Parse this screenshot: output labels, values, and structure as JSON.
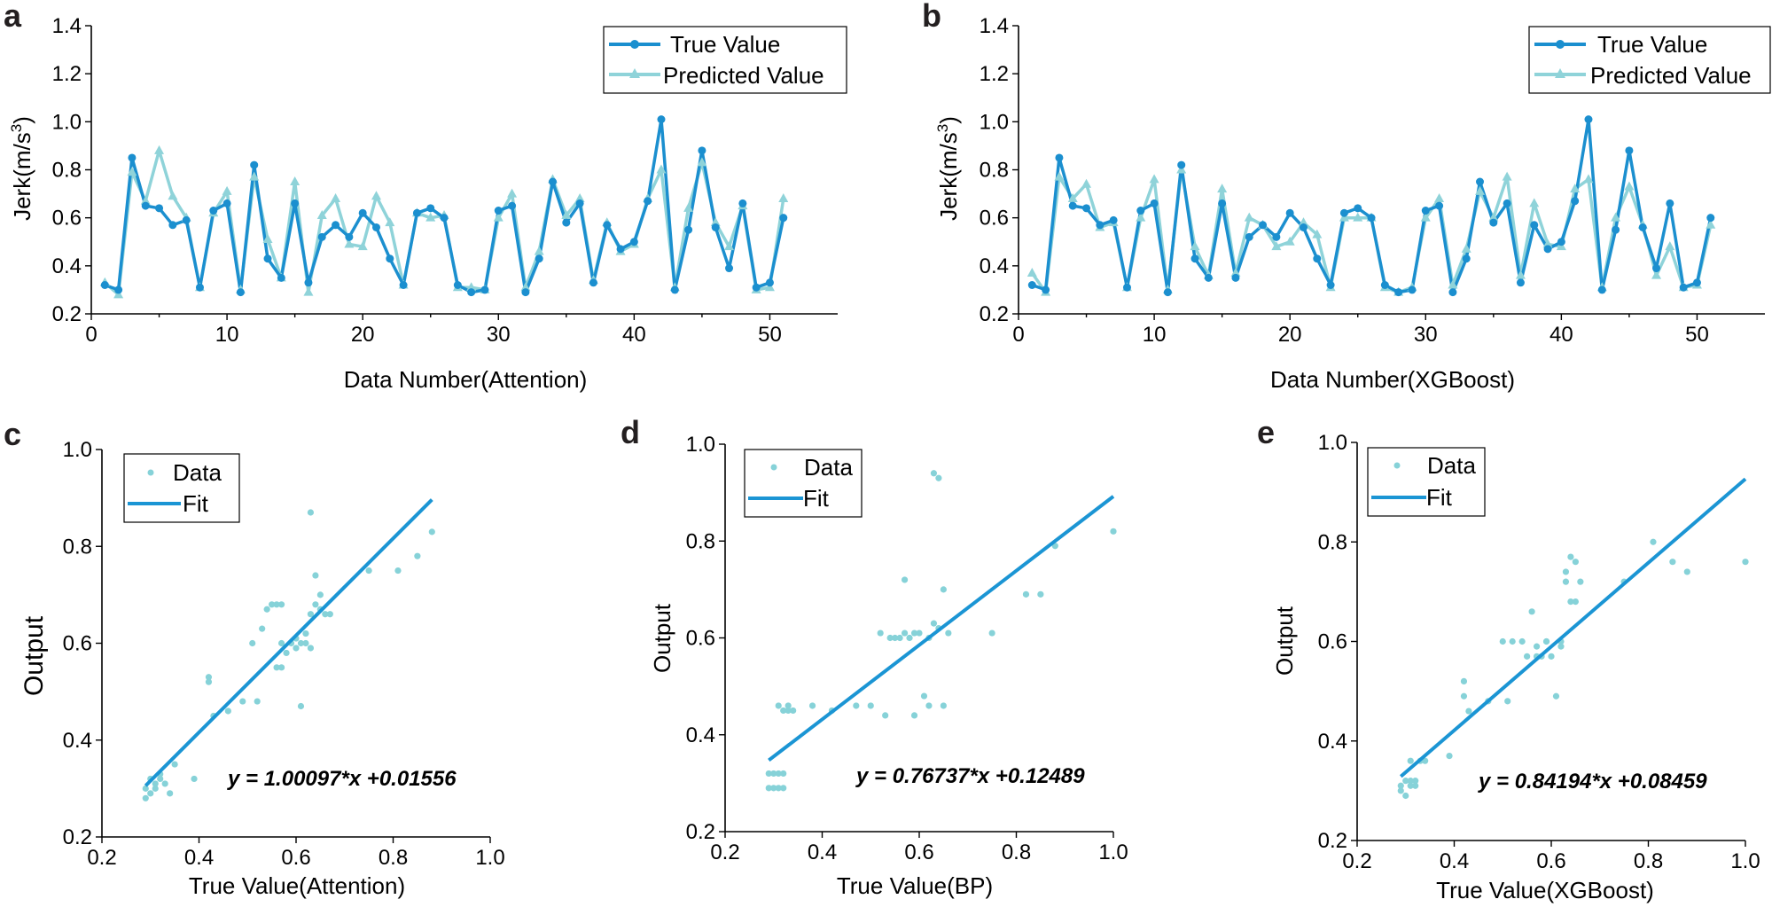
{
  "colors": {
    "true": "#1b8fcf",
    "pred": "#8fd3d9",
    "scatter": "#86d2d8",
    "fit": "#1b95d4"
  },
  "chart_data": [
    {
      "id": "a",
      "type": "line",
      "panel_label": "a",
      "xlabel": "Data Number(Attention)",
      "ylabel": "Jerk(m/s",
      "ylabel_sup": "3",
      "ylabel_end": ")",
      "xlim": [
        0,
        55
      ],
      "ylim": [
        0.2,
        1.4
      ],
      "xticks": [
        0,
        10,
        20,
        30,
        40,
        50
      ],
      "yticks": [
        0.2,
        0.4,
        0.6,
        0.8,
        1.0,
        1.2,
        1.4
      ],
      "xtick_labels": [
        "0",
        "10",
        "20",
        "30",
        "40",
        "50"
      ],
      "ytick_labels": [
        "0.2",
        "0.4",
        "0.6",
        "0.8",
        "1.0",
        "1.2",
        "1.4"
      ],
      "legend": [
        "True Value",
        "Predicted Value"
      ],
      "series": [
        {
          "name": "True Value",
          "marker": "circle",
          "values": [
            0.32,
            0.3,
            0.85,
            0.65,
            0.64,
            0.57,
            0.59,
            0.31,
            0.63,
            0.66,
            0.29,
            0.82,
            0.43,
            0.35,
            0.66,
            0.33,
            0.52,
            0.57,
            0.52,
            0.62,
            0.56,
            0.43,
            0.32,
            0.62,
            0.64,
            0.6,
            0.32,
            0.29,
            0.3,
            0.63,
            0.65,
            0.29,
            0.43,
            0.75,
            0.58,
            0.66,
            0.33,
            0.57,
            0.47,
            0.5,
            0.67,
            1.01,
            0.3,
            0.55,
            0.88,
            0.56,
            0.39,
            0.66,
            0.31,
            0.33,
            0.6
          ]
        },
        {
          "name": "Predicted Value",
          "marker": "triangle",
          "values": [
            0.33,
            0.28,
            0.79,
            0.67,
            0.88,
            0.69,
            0.6,
            0.31,
            0.62,
            0.71,
            0.3,
            0.77,
            0.51,
            0.35,
            0.75,
            0.29,
            0.61,
            0.68,
            0.49,
            0.48,
            0.69,
            0.58,
            0.32,
            0.62,
            0.6,
            0.61,
            0.31,
            0.31,
            0.3,
            0.6,
            0.7,
            0.31,
            0.46,
            0.76,
            0.61,
            0.68,
            0.34,
            0.58,
            0.46,
            0.49,
            0.68,
            0.8,
            0.31,
            0.64,
            0.83,
            0.58,
            0.48,
            0.65,
            0.3,
            0.31,
            0.68
          ]
        }
      ]
    },
    {
      "id": "b",
      "type": "line",
      "panel_label": "b",
      "xlabel": "Data Number(XGBoost)",
      "ylabel": "Jerk(m/s",
      "ylabel_sup": "3",
      "ylabel_end": ")",
      "xlim": [
        0,
        55
      ],
      "ylim": [
        0.2,
        1.4
      ],
      "xticks": [
        0,
        10,
        20,
        30,
        40,
        50
      ],
      "yticks": [
        0.2,
        0.4,
        0.6,
        0.8,
        1.0,
        1.2,
        1.4
      ],
      "xtick_labels": [
        "0",
        "10",
        "20",
        "30",
        "40",
        "50"
      ],
      "ytick_labels": [
        "0.2",
        "0.4",
        "0.6",
        "0.8",
        "1.0",
        "1.2",
        "1.4"
      ],
      "legend": [
        "True Value",
        "Predicted Value"
      ],
      "series": [
        {
          "name": "True Value",
          "marker": "circle",
          "values": [
            0.32,
            0.3,
            0.85,
            0.65,
            0.64,
            0.57,
            0.59,
            0.31,
            0.63,
            0.66,
            0.29,
            0.82,
            0.43,
            0.35,
            0.66,
            0.35,
            0.52,
            0.57,
            0.52,
            0.62,
            0.56,
            0.43,
            0.32,
            0.62,
            0.64,
            0.6,
            0.32,
            0.29,
            0.3,
            0.63,
            0.65,
            0.29,
            0.43,
            0.75,
            0.58,
            0.66,
            0.33,
            0.57,
            0.47,
            0.5,
            0.67,
            1.01,
            0.3,
            0.55,
            0.88,
            0.56,
            0.39,
            0.66,
            0.31,
            0.33,
            0.6
          ]
        },
        {
          "name": "Predicted Value",
          "marker": "triangle",
          "values": [
            0.37,
            0.29,
            0.77,
            0.68,
            0.74,
            0.56,
            0.58,
            0.31,
            0.6,
            0.76,
            0.3,
            0.8,
            0.48,
            0.36,
            0.72,
            0.37,
            0.6,
            0.57,
            0.48,
            0.5,
            0.58,
            0.53,
            0.31,
            0.6,
            0.6,
            0.6,
            0.31,
            0.29,
            0.31,
            0.6,
            0.68,
            0.32,
            0.47,
            0.71,
            0.6,
            0.77,
            0.36,
            0.66,
            0.49,
            0.48,
            0.72,
            0.76,
            0.31,
            0.6,
            0.73,
            0.57,
            0.36,
            0.48,
            0.31,
            0.32,
            0.57
          ]
        }
      ]
    },
    {
      "id": "c",
      "type": "scatter",
      "panel_label": "c",
      "xlabel": "True Value(Attention)",
      "ylabel": "Output",
      "xlim": [
        0.2,
        1.0
      ],
      "ylim": [
        0.2,
        1.0
      ],
      "xticks": [
        0.2,
        0.4,
        0.6,
        0.8,
        1.0
      ],
      "yticks": [
        0.2,
        0.4,
        0.6,
        0.8,
        1.0
      ],
      "xtick_labels": [
        "0.2",
        "0.4",
        "0.6",
        "0.8",
        "1.0"
      ],
      "ytick_labels": [
        "0.2",
        "0.4",
        "0.6",
        "0.8",
        "1.0"
      ],
      "legend": [
        "Data",
        "Fit"
      ],
      "fit": {
        "slope": 1.00097,
        "intercept": 0.01556,
        "x_range": [
          0.29,
          0.88
        ]
      },
      "equation": "y = 1.00097*x +0.01556",
      "x": [
        0.29,
        0.29,
        0.3,
        0.31,
        0.32,
        0.33,
        0.31,
        0.32,
        0.34,
        0.35,
        0.3,
        0.39,
        0.42,
        0.42,
        0.43,
        0.46,
        0.49,
        0.51,
        0.52,
        0.53,
        0.54,
        0.55,
        0.56,
        0.57,
        0.56,
        0.57,
        0.58,
        0.59,
        0.6,
        0.6,
        0.61,
        0.61,
        0.62,
        0.62,
        0.63,
        0.63,
        0.64,
        0.64,
        0.65,
        0.65,
        0.66,
        0.67,
        0.57,
        0.75,
        0.81,
        0.85,
        0.88,
        0.63
      ],
      "y": [
        0.28,
        0.3,
        0.32,
        0.31,
        0.33,
        0.31,
        0.3,
        0.32,
        0.29,
        0.35,
        0.29,
        0.32,
        0.53,
        0.52,
        0.45,
        0.46,
        0.48,
        0.6,
        0.48,
        0.63,
        0.67,
        0.68,
        0.68,
        0.68,
        0.55,
        0.6,
        0.58,
        0.6,
        0.59,
        0.61,
        0.47,
        0.6,
        0.62,
        0.6,
        0.66,
        0.87,
        0.74,
        0.68,
        0.7,
        0.67,
        0.66,
        0.66,
        0.55,
        0.75,
        0.75,
        0.78,
        0.83,
        0.59
      ]
    },
    {
      "id": "d",
      "type": "scatter",
      "panel_label": "d",
      "xlabel": "True Value(BP)",
      "ylabel": "Output",
      "xlim": [
        0.2,
        1.0
      ],
      "ylim": [
        0.2,
        1.0
      ],
      "xticks": [
        0.2,
        0.4,
        0.6,
        0.8,
        1.0
      ],
      "yticks": [
        0.2,
        0.4,
        0.6,
        0.8,
        1.0
      ],
      "xtick_labels": [
        "0.2",
        "0.4",
        "0.6",
        "0.8",
        "1.0"
      ],
      "ytick_labels": [
        "0.2",
        "0.4",
        "0.6",
        "0.8",
        "1.0"
      ],
      "legend": [
        "Data",
        "Fit"
      ],
      "fit": {
        "slope": 0.76737,
        "intercept": 0.12489,
        "x_range": [
          0.29,
          1.0
        ]
      },
      "equation": "y = 0.76737*x +0.12489",
      "x": [
        0.29,
        0.29,
        0.3,
        0.3,
        0.31,
        0.31,
        0.32,
        0.32,
        0.33,
        0.31,
        0.32,
        0.34,
        0.33,
        0.38,
        0.42,
        0.47,
        0.5,
        0.52,
        0.53,
        0.54,
        0.55,
        0.56,
        0.57,
        0.58,
        0.59,
        0.59,
        0.6,
        0.61,
        0.62,
        0.62,
        0.63,
        0.63,
        0.64,
        0.64,
        0.65,
        0.65,
        0.66,
        0.57,
        0.75,
        0.82,
        0.85,
        0.88,
        1.0
      ],
      "y": [
        0.29,
        0.32,
        0.29,
        0.32,
        0.29,
        0.32,
        0.29,
        0.32,
        0.45,
        0.46,
        0.45,
        0.45,
        0.46,
        0.46,
        0.45,
        0.46,
        0.46,
        0.61,
        0.44,
        0.6,
        0.6,
        0.6,
        0.72,
        0.6,
        0.61,
        0.44,
        0.61,
        0.48,
        0.6,
        0.46,
        0.63,
        0.94,
        0.62,
        0.93,
        0.7,
        0.46,
        0.61,
        0.61,
        0.61,
        0.69,
        0.69,
        0.79,
        0.82
      ]
    },
    {
      "id": "e",
      "type": "scatter",
      "panel_label": "e",
      "xlabel": "True Value(XGBoost)",
      "ylabel": "Output",
      "xlim": [
        0.2,
        1.0
      ],
      "ylim": [
        0.2,
        1.0
      ],
      "xticks": [
        0.2,
        0.4,
        0.6,
        0.8,
        1.0
      ],
      "yticks": [
        0.2,
        0.4,
        0.6,
        0.8,
        1.0
      ],
      "xtick_labels": [
        "0.2",
        "0.4",
        "0.6",
        "0.8",
        "1.0"
      ],
      "ytick_labels": [
        "0.2",
        "0.4",
        "0.6",
        "0.8",
        "1.0"
      ],
      "legend": [
        "Data",
        "Fit"
      ],
      "fit": {
        "slope": 0.84194,
        "intercept": 0.08459,
        "x_range": [
          0.29,
          1.0
        ]
      },
      "equation": "y = 0.84194*x +0.08459",
      "x": [
        0.29,
        0.29,
        0.3,
        0.3,
        0.31,
        0.31,
        0.32,
        0.32,
        0.33,
        0.31,
        0.34,
        0.39,
        0.42,
        0.42,
        0.43,
        0.47,
        0.5,
        0.51,
        0.52,
        0.54,
        0.55,
        0.56,
        0.57,
        0.58,
        0.59,
        0.59,
        0.6,
        0.61,
        0.62,
        0.62,
        0.63,
        0.63,
        0.64,
        0.64,
        0.65,
        0.65,
        0.66,
        0.57,
        0.75,
        0.81,
        0.85,
        0.88,
        1.0
      ],
      "y": [
        0.3,
        0.31,
        0.29,
        0.32,
        0.31,
        0.32,
        0.31,
        0.32,
        0.36,
        0.36,
        0.36,
        0.37,
        0.52,
        0.49,
        0.46,
        0.48,
        0.6,
        0.48,
        0.6,
        0.6,
        0.57,
        0.66,
        0.59,
        0.57,
        0.6,
        0.6,
        0.57,
        0.49,
        0.6,
        0.59,
        0.74,
        0.72,
        0.77,
        0.68,
        0.76,
        0.68,
        0.72,
        0.57,
        0.72,
        0.8,
        0.76,
        0.74,
        0.76
      ]
    }
  ]
}
